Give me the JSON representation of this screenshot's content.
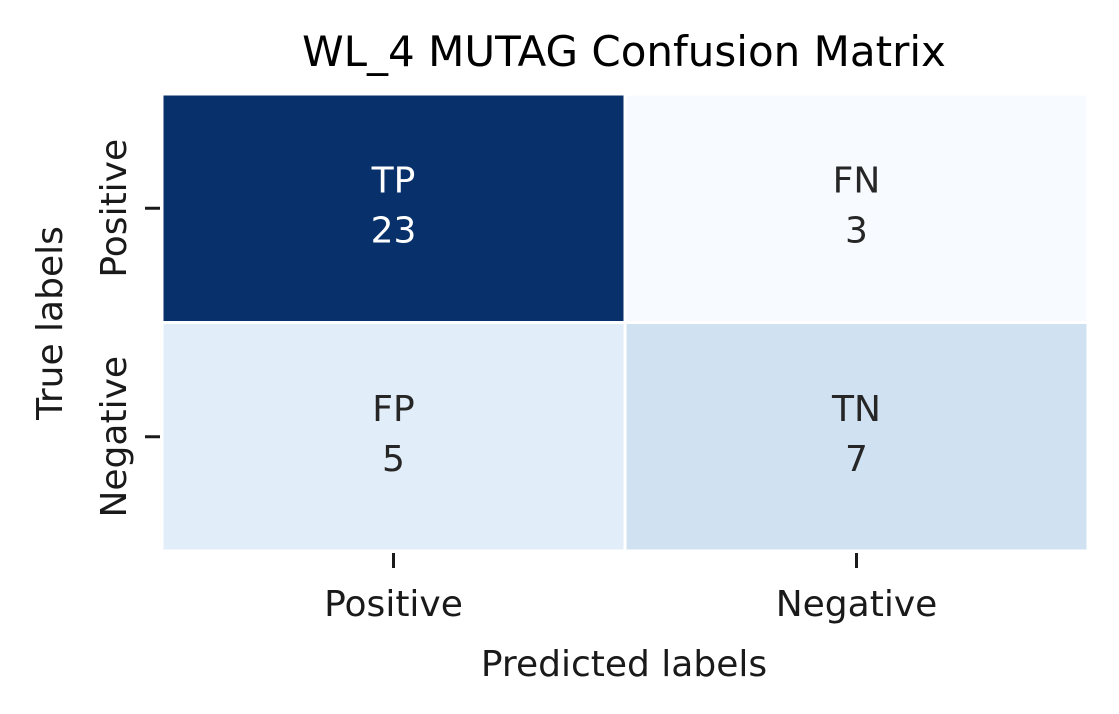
{
  "chart_data": {
    "type": "heatmap",
    "title": "WL_4 MUTAG Confusion Matrix",
    "xlabel": "Predicted labels",
    "ylabel": "True labels",
    "x_categories": [
      "Positive",
      "Negative"
    ],
    "y_categories": [
      "Positive",
      "Negative"
    ],
    "cells": [
      [
        {
          "label": "TP",
          "value": 23,
          "color": "#08306b",
          "text_color": "#ffffff"
        },
        {
          "label": "FN",
          "value": 3,
          "color": "#f7fbff",
          "text_color": "#262626"
        }
      ],
      [
        {
          "label": "FP",
          "value": 5,
          "color": "#e1edf8",
          "text_color": "#262626"
        },
        {
          "label": "TN",
          "value": 7,
          "color": "#d0e1f2",
          "text_color": "#262626"
        }
      ]
    ],
    "colormap": "Blues",
    "colorbar": false,
    "grid_line_color": "#ffffff"
  }
}
